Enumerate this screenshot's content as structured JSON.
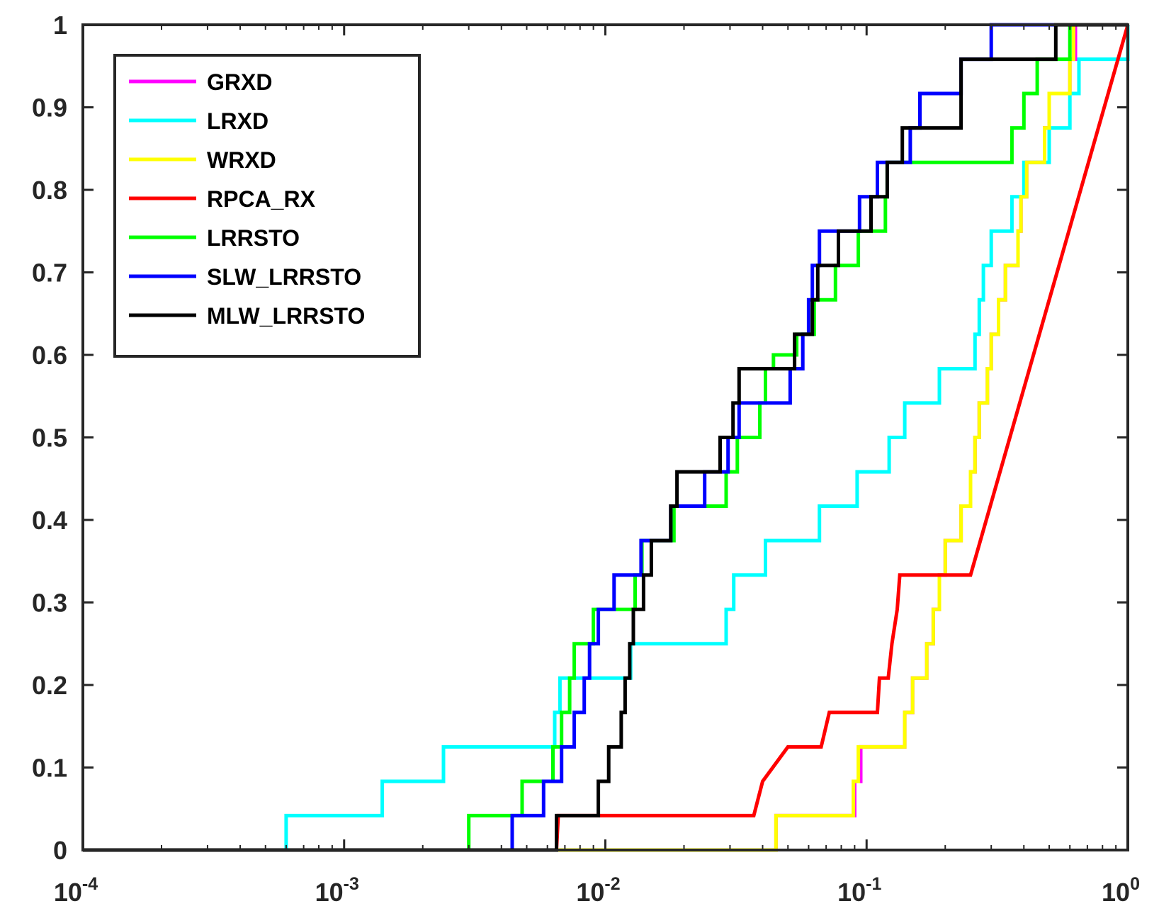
{
  "chart_data": {
    "type": "line",
    "title": "",
    "xlabel": "",
    "ylabel": "",
    "xscale": "log",
    "xlim": [
      0.0001,
      1
    ],
    "ylim": [
      0,
      1
    ],
    "grid": false,
    "legend_position": "top-left",
    "x_tick_labels": [
      {
        "base": "10",
        "exp": "-4",
        "value": 0.0001
      },
      {
        "base": "10",
        "exp": "-3",
        "value": 0.001
      },
      {
        "base": "10",
        "exp": "-2",
        "value": 0.01
      },
      {
        "base": "10",
        "exp": "-1",
        "value": 0.1
      },
      {
        "base": "10",
        "exp": "0",
        "value": 1
      }
    ],
    "y_ticks": [
      {
        "label": "0",
        "value": 0
      },
      {
        "label": "0.1",
        "value": 0.1
      },
      {
        "label": "0.2",
        "value": 0.2
      },
      {
        "label": "0.3",
        "value": 0.3
      },
      {
        "label": "0.4",
        "value": 0.4
      },
      {
        "label": "0.5",
        "value": 0.5
      },
      {
        "label": "0.6",
        "value": 0.6
      },
      {
        "label": "0.7",
        "value": 0.7
      },
      {
        "label": "0.8",
        "value": 0.8
      },
      {
        "label": "0.9",
        "value": 0.9
      },
      {
        "label": "1",
        "value": 1
      }
    ],
    "series": [
      {
        "name": "GRXD",
        "color": "#ff00ff",
        "step": true,
        "x": [
          0.0001,
          0.045,
          0.09,
          0.095,
          0.14,
          0.15,
          0.17,
          0.18,
          0.19,
          0.2,
          0.23,
          0.25,
          0.26,
          0.27,
          0.29,
          0.3,
          0.32,
          0.34,
          0.38,
          0.39,
          0.41,
          0.48,
          0.5,
          0.6,
          0.63,
          0.73,
          0.76,
          1.0
        ],
        "y": [
          0,
          0.0417,
          0.0833,
          0.125,
          0.1667,
          0.2083,
          0.25,
          0.2917,
          0.3333,
          0.375,
          0.4167,
          0.4583,
          0.5,
          0.5417,
          0.5833,
          0.625,
          0.6667,
          0.7083,
          0.75,
          0.7917,
          0.8333,
          0.875,
          0.9167,
          0.9583,
          1.0,
          1.0,
          1.0,
          1.0
        ]
      },
      {
        "name": "LRXD",
        "color": "#00ffff",
        "step": true,
        "x": [
          0.0001,
          0.0006,
          0.0014,
          0.0024,
          0.0064,
          0.0067,
          0.0085,
          0.011,
          0.0125,
          0.029,
          0.031,
          0.041,
          0.066,
          0.092,
          0.1,
          0.122,
          0.14,
          0.19,
          0.26,
          0.27,
          0.28,
          0.3,
          0.36,
          0.4,
          0.5,
          0.6,
          0.65,
          1.0
        ],
        "y": [
          0,
          0.0417,
          0.0833,
          0.125,
          0.1667,
          0.2083,
          0.2083,
          0.2083,
          0.25,
          0.2917,
          0.3333,
          0.375,
          0.4167,
          0.4583,
          0.4583,
          0.5,
          0.5417,
          0.5833,
          0.625,
          0.6667,
          0.7083,
          0.75,
          0.7917,
          0.8333,
          0.875,
          0.9167,
          0.9583,
          1.0
        ]
      },
      {
        "name": "WRXD",
        "color": "#ffff00",
        "step": true,
        "x": [
          0.0001,
          0.0065,
          0.045,
          0.089,
          0.093,
          0.14,
          0.15,
          0.17,
          0.18,
          0.19,
          0.2,
          0.23,
          0.25,
          0.26,
          0.27,
          0.29,
          0.3,
          0.32,
          0.34,
          0.38,
          0.39,
          0.41,
          0.48,
          0.5,
          0.6,
          0.62,
          0.72,
          0.76,
          1.0
        ],
        "y": [
          0,
          0,
          0.0417,
          0.0833,
          0.125,
          0.1667,
          0.2083,
          0.25,
          0.2917,
          0.3333,
          0.375,
          0.4167,
          0.4583,
          0.5,
          0.5417,
          0.5833,
          0.625,
          0.6667,
          0.7083,
          0.75,
          0.7917,
          0.8333,
          0.875,
          0.9167,
          0.9583,
          1.0,
          1.0,
          1.0,
          1.0
        ]
      },
      {
        "name": "RPCA_RX",
        "color": "#ff0000",
        "step": false,
        "x": [
          0.0001,
          0.0065,
          0.0066,
          0.037,
          0.04,
          0.05,
          0.067,
          0.072,
          0.11,
          0.112,
          0.121,
          0.125,
          0.131,
          0.134,
          0.142,
          0.25,
          1.0
        ],
        "y": [
          0,
          0,
          0.0417,
          0.0417,
          0.0833,
          0.125,
          0.125,
          0.1667,
          0.1667,
          0.2083,
          0.2083,
          0.25,
          0.2917,
          0.3333,
          0.3333,
          0.3333,
          1.0
        ]
      },
      {
        "name": "LRRSTO",
        "color": "#00ff00",
        "step": true,
        "x": [
          0.0001,
          0.003,
          0.0048,
          0.0063,
          0.0068,
          0.0073,
          0.0076,
          0.009,
          0.013,
          0.0138,
          0.0183,
          0.0198,
          0.029,
          0.032,
          0.039,
          0.041,
          0.044,
          0.054,
          0.063,
          0.076,
          0.093,
          0.118,
          0.12,
          0.124,
          0.13,
          0.36,
          0.4,
          0.45,
          0.6,
          0.64,
          1.0
        ],
        "y": [
          0,
          0.0417,
          0.0833,
          0.125,
          0.1667,
          0.2083,
          0.25,
          0.2917,
          0.3333,
          0.375,
          0.4167,
          0.4167,
          0.4583,
          0.5,
          0.5417,
          0.5833,
          0.6,
          0.625,
          0.6667,
          0.7083,
          0.75,
          0.7917,
          0.8333,
          0.8333,
          0.8333,
          0.875,
          0.9167,
          0.9583,
          1.0,
          1.0,
          1.0
        ]
      },
      {
        "name": "SLW_LRRSTO",
        "color": "#0000ff",
        "step": true,
        "x": [
          0.0001,
          0.0044,
          0.0058,
          0.0068,
          0.0076,
          0.0083,
          0.0087,
          0.0094,
          0.0108,
          0.0137,
          0.0178,
          0.024,
          0.0295,
          0.0325,
          0.051,
          0.057,
          0.06,
          0.062,
          0.066,
          0.094,
          0.11,
          0.136,
          0.147,
          0.16,
          0.23,
          0.25,
          0.3,
          0.53,
          0.6,
          1.0
        ],
        "y": [
          0,
          0.0417,
          0.0833,
          0.125,
          0.1667,
          0.2083,
          0.25,
          0.2917,
          0.3333,
          0.375,
          0.4167,
          0.4583,
          0.5,
          0.5417,
          0.5833,
          0.625,
          0.6667,
          0.7083,
          0.75,
          0.7917,
          0.8333,
          0.8333,
          0.875,
          0.9167,
          0.9583,
          0.9583,
          1.0,
          1.0,
          1.0,
          1.0
        ]
      },
      {
        "name": "MLW_LRRSTO",
        "color": "#000000",
        "step": true,
        "x": [
          0.0001,
          0.0065,
          0.0094,
          0.0103,
          0.0115,
          0.0119,
          0.0124,
          0.0128,
          0.014,
          0.015,
          0.0178,
          0.0188,
          0.0235,
          0.0275,
          0.0308,
          0.0325,
          0.053,
          0.062,
          0.065,
          0.078,
          0.104,
          0.12,
          0.137,
          0.15,
          0.23,
          0.53,
          0.6,
          1.0
        ],
        "y": [
          0,
          0.0417,
          0.0833,
          0.125,
          0.1667,
          0.2083,
          0.25,
          0.2917,
          0.3333,
          0.375,
          0.4167,
          0.4583,
          0.4583,
          0.5,
          0.5417,
          0.5833,
          0.625,
          0.6667,
          0.7083,
          0.75,
          0.7917,
          0.8333,
          0.875,
          0.875,
          0.9583,
          1.0,
          1.0,
          1.0
        ]
      }
    ]
  }
}
